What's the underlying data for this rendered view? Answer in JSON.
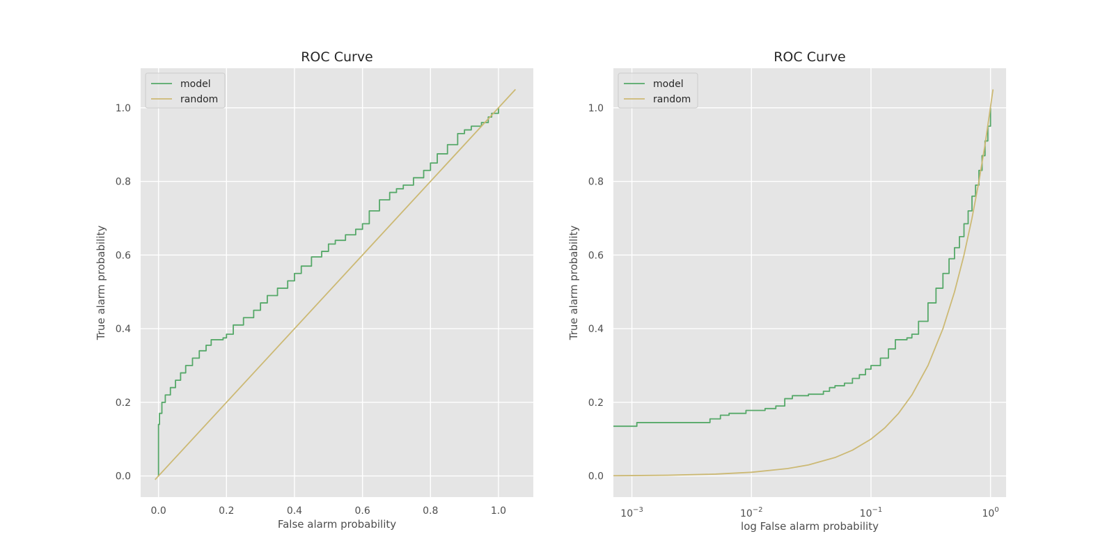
{
  "chart_data": [
    {
      "type": "line",
      "title": "ROC Curve",
      "xlabel": "False alarm probability",
      "ylabel": "True alarm probability",
      "xscale": "linear",
      "xlim": [
        -0.0525,
        1.1025
      ],
      "ylim": [
        -0.0575,
        1.1075
      ],
      "xticks": [
        0.0,
        0.2,
        0.4,
        0.6,
        0.8,
        1.0
      ],
      "xtick_labels": [
        "0.0",
        "0.2",
        "0.4",
        "0.6",
        "0.8",
        "1.0"
      ],
      "yticks": [
        0.0,
        0.2,
        0.4,
        0.6,
        0.8,
        1.0
      ],
      "ytick_labels": [
        "0.0",
        "0.2",
        "0.4",
        "0.6",
        "0.8",
        "1.0"
      ],
      "grid": true,
      "legend": "top-left",
      "series": [
        {
          "name": "model",
          "color": "#55a868",
          "step": true,
          "x": [
            0.0,
            0.0,
            0.003,
            0.01,
            0.02,
            0.035,
            0.05,
            0.065,
            0.08,
            0.1,
            0.12,
            0.14,
            0.155,
            0.16,
            0.19,
            0.2,
            0.22,
            0.25,
            0.28,
            0.3,
            0.32,
            0.35,
            0.38,
            0.4,
            0.42,
            0.45,
            0.48,
            0.5,
            0.52,
            0.55,
            0.58,
            0.6,
            0.62,
            0.65,
            0.68,
            0.7,
            0.72,
            0.75,
            0.78,
            0.8,
            0.82,
            0.85,
            0.88,
            0.9,
            0.92,
            0.95,
            0.97,
            0.98,
            1.0
          ],
          "y": [
            0.0,
            0.14,
            0.17,
            0.2,
            0.22,
            0.24,
            0.26,
            0.28,
            0.3,
            0.32,
            0.34,
            0.355,
            0.37,
            0.37,
            0.375,
            0.385,
            0.41,
            0.43,
            0.45,
            0.47,
            0.49,
            0.51,
            0.53,
            0.55,
            0.57,
            0.595,
            0.61,
            0.63,
            0.64,
            0.655,
            0.67,
            0.685,
            0.72,
            0.75,
            0.77,
            0.78,
            0.79,
            0.81,
            0.83,
            0.85,
            0.875,
            0.9,
            0.93,
            0.94,
            0.95,
            0.96,
            0.975,
            0.985,
            1.0
          ]
        },
        {
          "name": "random",
          "color": "#ccb974",
          "step": false,
          "x": [
            -0.01,
            1.05
          ],
          "y": [
            -0.01,
            1.05
          ]
        }
      ]
    },
    {
      "type": "line",
      "title": "ROC Curve",
      "xlabel": "log False alarm probability",
      "ylabel": "True alarm probability",
      "xscale": "log",
      "xlim": [
        0.0007,
        1.35
      ],
      "ylim": [
        -0.0575,
        1.1075
      ],
      "xticks": [
        0.001,
        0.01,
        0.1,
        1
      ],
      "xtick_labels": [
        {
          "base": "10",
          "exp": "−3"
        },
        {
          "base": "10",
          "exp": "−2"
        },
        {
          "base": "10",
          "exp": "−1"
        },
        {
          "base": "10",
          "exp": "0"
        }
      ],
      "yticks": [
        0.0,
        0.2,
        0.4,
        0.6,
        0.8,
        1.0
      ],
      "ytick_labels": [
        "0.0",
        "0.2",
        "0.4",
        "0.6",
        "0.8",
        "1.0"
      ],
      "grid": true,
      "legend": "top-left",
      "series": [
        {
          "name": "model",
          "color": "#55a868",
          "step": true,
          "x": [
            0.0007,
            0.0011,
            0.0045,
            0.0055,
            0.0065,
            0.009,
            0.013,
            0.016,
            0.019,
            0.022,
            0.03,
            0.04,
            0.045,
            0.05,
            0.06,
            0.07,
            0.08,
            0.09,
            0.1,
            0.12,
            0.14,
            0.16,
            0.2,
            0.22,
            0.25,
            0.3,
            0.35,
            0.4,
            0.45,
            0.5,
            0.55,
            0.6,
            0.65,
            0.7,
            0.75,
            0.8,
            0.85,
            0.9,
            0.95,
            1.0
          ],
          "y": [
            0.135,
            0.145,
            0.155,
            0.165,
            0.17,
            0.178,
            0.183,
            0.19,
            0.21,
            0.218,
            0.222,
            0.23,
            0.24,
            0.245,
            0.252,
            0.265,
            0.275,
            0.29,
            0.3,
            0.32,
            0.345,
            0.37,
            0.375,
            0.385,
            0.42,
            0.47,
            0.51,
            0.55,
            0.59,
            0.62,
            0.65,
            0.685,
            0.72,
            0.76,
            0.79,
            0.83,
            0.87,
            0.91,
            0.95,
            1.0
          ]
        },
        {
          "name": "random",
          "color": "#ccb974",
          "step": false,
          "x": [
            0.0007,
            0.001,
            0.002,
            0.005,
            0.01,
            0.02,
            0.03,
            0.05,
            0.07,
            0.1,
            0.13,
            0.17,
            0.22,
            0.3,
            0.4,
            0.5,
            0.6,
            0.7,
            0.8,
            0.9,
            1.05
          ],
          "y": [
            0.0007,
            0.001,
            0.002,
            0.005,
            0.01,
            0.02,
            0.03,
            0.05,
            0.07,
            0.1,
            0.13,
            0.17,
            0.22,
            0.3,
            0.4,
            0.5,
            0.6,
            0.7,
            0.8,
            0.9,
            1.05
          ]
        }
      ]
    }
  ]
}
